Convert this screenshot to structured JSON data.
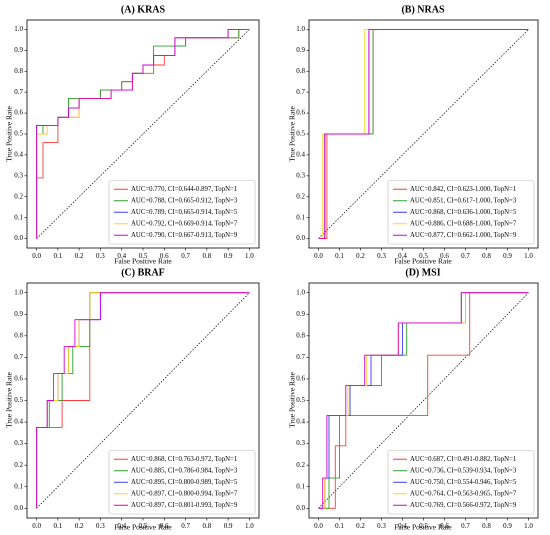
{
  "colors": [
    "#ff3b3b",
    "#2ca02c",
    "#3b3bff",
    "#ffd21f",
    "#d400d4"
  ],
  "chart_data": [
    {
      "type": "line",
      "title": "(A) KRAS",
      "xlabel": "False Positive Rate",
      "ylabel": "True Positive Rate",
      "xlim": [
        0,
        1
      ],
      "ylim": [
        0,
        1
      ],
      "xticks": [
        "0.0",
        "0.1",
        "0.2",
        "0.3",
        "0.4",
        "0.5",
        "0.6",
        "0.7",
        "0.8",
        "0.9",
        "1.0"
      ],
      "yticks": [
        "0.0",
        "0.1",
        "0.2",
        "0.3",
        "0.4",
        "0.5",
        "0.6",
        "0.7",
        "0.8",
        "0.9",
        "1.0"
      ],
      "grid": false,
      "legend": "bottom-right",
      "series": [
        {
          "name": "AUC=0.770, CI=0.644-0.897, TopN=1",
          "x": [
            0,
            0,
            0.03,
            0.03,
            0.1,
            0.1,
            0.2,
            0.2,
            0.3,
            0.3,
            0.4,
            0.4,
            0.45,
            0.45,
            0.55,
            0.55,
            0.6,
            0.6,
            0.65,
            0.65,
            0.7,
            0.7,
            0.8,
            0.8,
            0.95,
            0.95,
            1
          ],
          "y": [
            0,
            0.29,
            0.29,
            0.46,
            0.46,
            0.58,
            0.58,
            0.67,
            0.67,
            0.71,
            0.71,
            0.75,
            0.75,
            0.79,
            0.79,
            0.83,
            0.83,
            0.875,
            0.875,
            0.92,
            0.92,
            0.96,
            0.96,
            0.96,
            0.96,
            1,
            1
          ]
        },
        {
          "name": "AUC=0.788, CI=0.665-0.912, TopN=3",
          "x": [
            0,
            0,
            0.03,
            0.03,
            0.1,
            0.1,
            0.15,
            0.15,
            0.3,
            0.3,
            0.4,
            0.4,
            0.45,
            0.45,
            0.5,
            0.5,
            0.55,
            0.55,
            0.6,
            0.6,
            0.7,
            0.7,
            0.95,
            0.95,
            1
          ],
          "y": [
            0,
            0.5,
            0.5,
            0.54,
            0.54,
            0.58,
            0.58,
            0.67,
            0.67,
            0.71,
            0.71,
            0.75,
            0.75,
            0.79,
            0.79,
            0.83,
            0.83,
            0.92,
            0.92,
            0.92,
            0.92,
            0.96,
            0.96,
            1,
            1
          ]
        },
        {
          "name": "AUC=0.789, CI=0.665-0.914, TopN=5",
          "x": [
            0,
            0,
            0.05,
            0.05,
            0.1,
            0.1,
            0.15,
            0.15,
            0.2,
            0.2,
            0.35,
            0.35,
            0.45,
            0.45,
            0.5,
            0.5,
            0.55,
            0.55,
            0.65,
            0.65,
            0.9,
            0.9,
            1
          ],
          "y": [
            0,
            0.54,
            0.54,
            0.54,
            0.54,
            0.58,
            0.58,
            0.625,
            0.625,
            0.67,
            0.67,
            0.71,
            0.71,
            0.79,
            0.79,
            0.83,
            0.83,
            0.875,
            0.875,
            0.96,
            0.96,
            1,
            1
          ]
        },
        {
          "name": "AUC=0.792, CI=0.669-0.914, TopN=7",
          "x": [
            0,
            0,
            0.05,
            0.05,
            0.1,
            0.1,
            0.2,
            0.2,
            0.35,
            0.35,
            0.45,
            0.45,
            0.5,
            0.5,
            0.55,
            0.55,
            0.65,
            0.65,
            0.9,
            0.9,
            1
          ],
          "y": [
            0,
            0.5,
            0.5,
            0.54,
            0.54,
            0.58,
            0.58,
            0.67,
            0.67,
            0.71,
            0.71,
            0.79,
            0.79,
            0.83,
            0.83,
            0.875,
            0.875,
            0.96,
            0.96,
            1,
            1
          ]
        },
        {
          "name": "AUC=0.790, CI=0.667-0.913, TopN=9",
          "x": [
            0,
            0,
            0.05,
            0.05,
            0.1,
            0.1,
            0.15,
            0.15,
            0.2,
            0.2,
            0.35,
            0.35,
            0.45,
            0.45,
            0.5,
            0.5,
            0.55,
            0.55,
            0.65,
            0.65,
            0.9,
            0.9,
            1
          ],
          "y": [
            0,
            0.54,
            0.54,
            0.54,
            0.54,
            0.58,
            0.58,
            0.625,
            0.625,
            0.67,
            0.67,
            0.71,
            0.71,
            0.79,
            0.79,
            0.83,
            0.83,
            0.875,
            0.875,
            0.96,
            0.96,
            1,
            1
          ]
        }
      ]
    },
    {
      "type": "line",
      "title": "(B) NRAS",
      "xlabel": "False Positive Rate",
      "ylabel": "True Positive Rate",
      "xlim": [
        0,
        1
      ],
      "ylim": [
        0,
        1
      ],
      "xticks": [
        "0.0",
        "0.1",
        "0.2",
        "0.3",
        "0.4",
        "0.5",
        "0.6",
        "0.7",
        "0.8",
        "0.9",
        "1.0"
      ],
      "yticks": [
        "0.0",
        "0.1",
        "0.2",
        "0.3",
        "0.4",
        "0.5",
        "0.6",
        "0.7",
        "0.8",
        "0.9",
        "1.0"
      ],
      "grid": false,
      "legend": "bottom-right",
      "series": [
        {
          "name": "AUC=0.842, CI=0.623-1.000, TopN=1",
          "x": [
            0,
            0.04,
            0.04,
            0.26,
            0.26,
            1
          ],
          "y": [
            0,
            0,
            0.5,
            0.5,
            1,
            1
          ]
        },
        {
          "name": "AUC=0.851, CI=0.617-1.000, TopN=3",
          "x": [
            0,
            0.03,
            0.03,
            0.26,
            0.26,
            1
          ],
          "y": [
            0,
            0,
            0.5,
            0.5,
            1,
            1
          ]
        },
        {
          "name": "AUC=0.868, CI=0.636-1.000, TopN=5",
          "x": [
            0,
            0.03,
            0.03,
            0.24,
            0.24,
            1
          ],
          "y": [
            0,
            0,
            0.5,
            0.5,
            1,
            1
          ]
        },
        {
          "name": "AUC=0.886, CI=0.688-1.000, TopN=7",
          "x": [
            0,
            0.02,
            0.02,
            0.22,
            0.22,
            1
          ],
          "y": [
            0,
            0,
            0.5,
            0.5,
            1,
            1
          ]
        },
        {
          "name": "AUC=0.877, CI=0.662-1.000, TopN=9",
          "x": [
            0,
            0.03,
            0.03,
            0.24,
            0.24,
            1
          ],
          "y": [
            0,
            0,
            0.5,
            0.5,
            1,
            1
          ]
        }
      ]
    },
    {
      "type": "line",
      "title": "(C) BRAF",
      "xlabel": "False Positive Rate",
      "ylabel": "True Positive Rate",
      "xlim": [
        0,
        1
      ],
      "ylim": [
        0,
        1
      ],
      "xticks": [
        "0.0",
        "0.1",
        "0.2",
        "0.3",
        "0.4",
        "0.5",
        "0.6",
        "0.7",
        "0.8",
        "0.9",
        "1.0"
      ],
      "yticks": [
        "0.0",
        "0.1",
        "0.2",
        "0.3",
        "0.4",
        "0.5",
        "0.6",
        "0.7",
        "0.8",
        "0.9",
        "1.0"
      ],
      "grid": false,
      "legend": "bottom-right",
      "series": [
        {
          "name": "AUC=0.868, CI=0.763-0.972, TopN=1",
          "x": [
            0,
            0,
            0.12,
            0.12,
            0.17,
            0.17,
            0.25,
            0.25,
            1
          ],
          "y": [
            0,
            0.375,
            0.375,
            0.5,
            0.5,
            0.5,
            0.5,
            1,
            1
          ]
        },
        {
          "name": "AUC=0.885, CI=0.786-0.984, TopN=3",
          "x": [
            0,
            0,
            0.06,
            0.06,
            0.12,
            0.12,
            0.17,
            0.17,
            0.25,
            0.25,
            1
          ],
          "y": [
            0,
            0.375,
            0.375,
            0.5,
            0.5,
            0.625,
            0.625,
            0.75,
            0.75,
            1,
            1
          ]
        },
        {
          "name": "AUC=0.895, CI=0.800-0.989, TopN=5",
          "x": [
            0,
            0,
            0.05,
            0.05,
            0.1,
            0.1,
            0.15,
            0.15,
            0.2,
            0.2,
            0.3,
            0.3,
            1
          ],
          "y": [
            0,
            0.375,
            0.375,
            0.5,
            0.5,
            0.625,
            0.625,
            0.75,
            0.75,
            0.875,
            0.875,
            1,
            1
          ]
        },
        {
          "name": "AUC=0.897, CI=0.800-0.994, TopN=7",
          "x": [
            0,
            0,
            0.05,
            0.05,
            0.1,
            0.1,
            0.15,
            0.15,
            0.2,
            0.2,
            0.25,
            0.25,
            1
          ],
          "y": [
            0,
            0.375,
            0.375,
            0.5,
            0.5,
            0.625,
            0.625,
            0.75,
            0.75,
            0.875,
            0.875,
            1,
            1
          ]
        },
        {
          "name": "AUC=0.897, CI=0.801-0.993, TopN=9",
          "x": [
            0,
            0,
            0.05,
            0.05,
            0.08,
            0.08,
            0.13,
            0.13,
            0.18,
            0.18,
            0.3,
            0.3,
            1
          ],
          "y": [
            0,
            0.375,
            0.375,
            0.5,
            0.5,
            0.625,
            0.625,
            0.75,
            0.75,
            0.875,
            0.875,
            1,
            1
          ]
        }
      ]
    },
    {
      "type": "line",
      "title": "(D) MSI",
      "xlabel": "False Positive Rate",
      "ylabel": "True Positive Rate",
      "xlim": [
        0,
        1
      ],
      "ylim": [
        0,
        1
      ],
      "xticks": [
        "0.0",
        "0.1",
        "0.2",
        "0.3",
        "0.4",
        "0.5",
        "0.6",
        "0.7",
        "0.8",
        "0.9",
        "1.0"
      ],
      "yticks": [
        "0.0",
        "0.1",
        "0.2",
        "0.3",
        "0.4",
        "0.5",
        "0.6",
        "0.7",
        "0.8",
        "0.9",
        "1.0"
      ],
      "grid": false,
      "legend": "bottom-right",
      "series": [
        {
          "name": "AUC=0.687, CI=0.491-0.882, TopN=1",
          "x": [
            0,
            0.08,
            0.08,
            0.13,
            0.13,
            0.25,
            0.25,
            0.33,
            0.33,
            0.45,
            0.45,
            0.52,
            0.52,
            0.72,
            0.72,
            1
          ],
          "y": [
            0,
            0,
            0.29,
            0.29,
            0.43,
            0.43,
            0.43,
            0.43,
            0.43,
            0.43,
            0.43,
            0.43,
            0.71,
            0.71,
            1,
            1
          ]
        },
        {
          "name": "AUC=0.736, CI=0.539-0.934, TopN=3",
          "x": [
            0,
            0.05,
            0.05,
            0.1,
            0.1,
            0.15,
            0.15,
            0.3,
            0.3,
            0.42,
            0.42,
            0.68,
            0.68,
            1
          ],
          "y": [
            0,
            0,
            0.14,
            0.14,
            0.43,
            0.43,
            0.57,
            0.57,
            0.71,
            0.71,
            0.86,
            0.86,
            1,
            1
          ]
        },
        {
          "name": "AUC=0.750, CI=0.554-0.946, TopN=5",
          "x": [
            0,
            0.03,
            0.03,
            0.05,
            0.05,
            0.15,
            0.15,
            0.25,
            0.25,
            0.4,
            0.4,
            0.7,
            0.7,
            1
          ],
          "y": [
            0,
            0,
            0.14,
            0.14,
            0.43,
            0.43,
            0.57,
            0.57,
            0.71,
            0.71,
            0.86,
            0.86,
            1,
            1
          ]
        },
        {
          "name": "AUC=0.764, CI=0.563-0.965, TopN=7",
          "x": [
            0,
            0.03,
            0.03,
            0.04,
            0.04,
            0.14,
            0.14,
            0.23,
            0.23,
            0.38,
            0.38,
            0.7,
            0.7,
            1
          ],
          "y": [
            0,
            0,
            0.14,
            0.14,
            0.43,
            0.43,
            0.57,
            0.57,
            0.71,
            0.71,
            0.86,
            0.86,
            1,
            1
          ]
        },
        {
          "name": "AUC=0.769, CI=0.566-0.972, TopN=9",
          "x": [
            0,
            0.02,
            0.02,
            0.04,
            0.04,
            0.13,
            0.13,
            0.22,
            0.22,
            0.38,
            0.38,
            0.68,
            0.68,
            1
          ],
          "y": [
            0,
            0,
            0.14,
            0.14,
            0.43,
            0.43,
            0.57,
            0.57,
            0.71,
            0.71,
            0.86,
            0.86,
            1,
            1
          ]
        }
      ]
    }
  ]
}
